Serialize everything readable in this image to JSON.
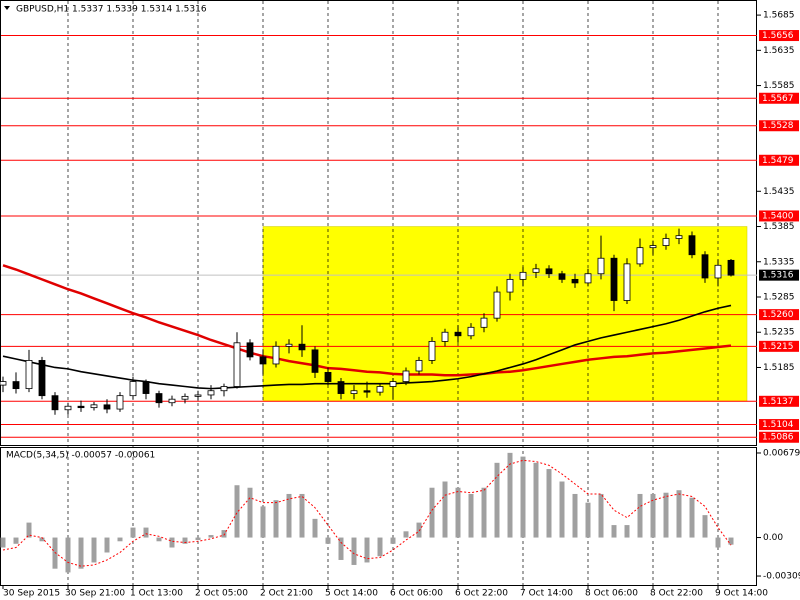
{
  "chart_data": [
    {
      "type": "candlestick",
      "title": "GBPUSD,H1  1.5337 1.5339 1.5314 1.5316",
      "categories": [
        "30 Sep 2015",
        null,
        null,
        null,
        null,
        "30 Sep 21:00",
        null,
        null,
        null,
        null,
        "1 Oct 13:00",
        null,
        null,
        null,
        null,
        "2 Oct 05:00",
        null,
        null,
        null,
        null,
        "2 Oct 21:00",
        null,
        null,
        null,
        null,
        "5 Oct 14:00",
        null,
        null,
        null,
        null,
        "6 Oct 06:00",
        null,
        null,
        null,
        null,
        "6 Oct 22:00",
        null,
        null,
        null,
        null,
        "7 Oct 14:00",
        null,
        null,
        null,
        null,
        "8 Oct 06:00",
        null,
        null,
        null,
        null,
        "8 Oct 22:00",
        null,
        null,
        null,
        null,
        "9 Oct 14:00",
        null
      ],
      "open": [
        1.516,
        1.5165,
        1.5155,
        1.5195,
        1.5145,
        1.5125,
        1.513,
        1.5128,
        1.5132,
        1.5126,
        1.5145,
        1.5165,
        1.5148,
        1.5135,
        1.514,
        1.5144,
        1.5146,
        1.5152,
        1.5158,
        1.522,
        1.52,
        1.519,
        1.5215,
        1.5218,
        1.521,
        1.5178,
        1.5165,
        1.5148,
        1.5152,
        1.515,
        1.5158,
        1.5165,
        1.518,
        1.5195,
        1.5222,
        1.5235,
        1.523,
        1.5242,
        1.5255,
        1.5292,
        1.531,
        1.532,
        1.5325,
        1.5318,
        1.531,
        1.5305,
        1.5318,
        1.534,
        1.528,
        1.5332,
        1.5355,
        1.5358,
        1.5368,
        1.5372,
        1.5345,
        1.5312,
        1.5337
      ],
      "high": [
        1.5172,
        1.5178,
        1.521,
        1.52,
        1.515,
        1.5135,
        1.5138,
        1.5136,
        1.514,
        1.515,
        1.5172,
        1.5168,
        1.5152,
        1.5145,
        1.5148,
        1.5152,
        1.516,
        1.5162,
        1.5235,
        1.5225,
        1.521,
        1.5222,
        1.5225,
        1.5245,
        1.5215,
        1.5185,
        1.517,
        1.516,
        1.5165,
        1.5162,
        1.517,
        1.5185,
        1.52,
        1.5228,
        1.524,
        1.5245,
        1.5248,
        1.5262,
        1.53,
        1.5318,
        1.5328,
        1.5332,
        1.533,
        1.5322,
        1.5318,
        1.5325,
        1.5372,
        1.5345,
        1.534,
        1.5368,
        1.5365,
        1.5375,
        1.5382,
        1.5378,
        1.535,
        1.5338,
        1.5339
      ],
      "low": [
        1.515,
        1.5148,
        1.515,
        1.514,
        1.5118,
        1.5118,
        1.5122,
        1.5124,
        1.512,
        1.5122,
        1.514,
        1.514,
        1.5128,
        1.513,
        1.5134,
        1.5138,
        1.514,
        1.5144,
        1.5155,
        1.5195,
        1.5175,
        1.5185,
        1.5205,
        1.52,
        1.517,
        1.516,
        1.514,
        1.514,
        1.5142,
        1.5145,
        1.514,
        1.516,
        1.5175,
        1.519,
        1.5215,
        1.522,
        1.5225,
        1.5235,
        1.525,
        1.528,
        1.53,
        1.5312,
        1.5312,
        1.5305,
        1.5298,
        1.53,
        1.531,
        1.5265,
        1.5275,
        1.5328,
        1.5345,
        1.5352,
        1.536,
        1.534,
        1.5305,
        1.53,
        1.5314
      ],
      "close": [
        1.5165,
        1.5155,
        1.5195,
        1.5145,
        1.5125,
        1.513,
        1.5128,
        1.5132,
        1.5126,
        1.5145,
        1.5165,
        1.5148,
        1.5135,
        1.514,
        1.5144,
        1.5146,
        1.5152,
        1.5158,
        1.522,
        1.52,
        1.519,
        1.5215,
        1.5218,
        1.521,
        1.5178,
        1.5165,
        1.5148,
        1.5152,
        1.515,
        1.5158,
        1.5165,
        1.518,
        1.5195,
        1.5222,
        1.5235,
        1.523,
        1.5242,
        1.5255,
        1.5292,
        1.531,
        1.532,
        1.5325,
        1.5318,
        1.531,
        1.5305,
        1.5318,
        1.534,
        1.528,
        1.5332,
        1.5355,
        1.5358,
        1.5368,
        1.5372,
        1.5345,
        1.5312,
        1.533,
        1.5316
      ],
      "up_color": "#ffffff",
      "down_color": "#000000",
      "overlays": [
        {
          "color": "#e00000",
          "values": [
            1.533,
            1.5324,
            1.5317,
            1.531,
            1.5303,
            1.5296,
            1.529,
            1.5283,
            1.5276,
            1.5269,
            1.5262,
            1.5256,
            1.5249,
            1.5243,
            1.5237,
            1.5231,
            1.5224,
            1.5218,
            1.5212,
            1.5206,
            1.5201,
            1.5198,
            1.5194,
            1.5191,
            1.5188,
            1.5184,
            1.5183,
            1.5181,
            1.5179,
            1.5178,
            1.5176,
            1.5175,
            1.5175,
            1.5175,
            1.5174,
            1.5174,
            1.5175,
            1.5176,
            1.5178,
            1.5179,
            1.5181,
            1.5184,
            1.5187,
            1.519,
            1.5193,
            1.5196,
            1.5198,
            1.52,
            1.5201,
            1.5203,
            1.5205,
            1.5206,
            1.5208,
            1.521,
            1.5212,
            1.5214,
            1.5216
          ]
        },
        {
          "color": "#000000",
          "values": [
            1.5201,
            1.5197,
            1.5193,
            1.5189,
            1.5185,
            1.5183,
            1.5179,
            1.5176,
            1.5173,
            1.517,
            1.5167,
            1.5165,
            1.5162,
            1.516,
            1.5158,
            1.5156,
            1.5155,
            1.5156,
            1.5157,
            1.5158,
            1.5159,
            1.516,
            1.5161,
            1.5161,
            1.5162,
            1.5162,
            1.5162,
            1.5162,
            1.5162,
            1.5162,
            1.5162,
            1.5163,
            1.5164,
            1.5165,
            1.5167,
            1.5169,
            1.5172,
            1.5176,
            1.518,
            1.5185,
            1.519,
            1.5196,
            1.5203,
            1.521,
            1.5217,
            1.5222,
            1.5227,
            1.5231,
            1.5235,
            1.5239,
            1.5243,
            1.5247,
            1.5252,
            1.5258,
            1.5264,
            1.5269,
            1.5273
          ]
        }
      ],
      "levels": [
        {
          "value": 1.5656,
          "label": "1.5656"
        },
        {
          "value": 1.5567,
          "label": "1.5567"
        },
        {
          "value": 1.5528,
          "label": "1.5528"
        },
        {
          "value": 1.5479,
          "label": "1.5479"
        },
        {
          "value": 1.54,
          "label": "1.5400"
        },
        {
          "value": 1.526,
          "label": "1.5260"
        },
        {
          "value": 1.5215,
          "label": "1.5215"
        },
        {
          "value": 1.5137,
          "label": "1.5137"
        },
        {
          "value": 1.5104,
          "label": "1.5104"
        },
        {
          "value": 1.5086,
          "label": "1.5086"
        }
      ],
      "level_color": "#ff0000",
      "current": {
        "value": 1.5316,
        "label": "1.5316"
      },
      "highlight_range": [
        1.5137,
        1.5385
      ],
      "highlight_color": "#ffff00",
      "ylim": [
        1.5075,
        1.5705
      ],
      "yticks": [
        1.5685,
        1.5635,
        1.5585,
        1.5435,
        1.5385,
        1.5335,
        1.5285,
        1.5235,
        1.5185
      ]
    },
    {
      "type": "macd",
      "title": "MACD(5,34,5) -0.00057 -0.00061",
      "color": "#a0a0a0",
      "signal_color": "#ff0000",
      "values": [
        -0.0008,
        -0.0005,
        0.0012,
        -0.0003,
        -0.0025,
        -0.0028,
        -0.0025,
        -0.002,
        -0.0012,
        -0.0003,
        0.0008,
        0.0008,
        -0.0003,
        -0.0008,
        -0.0005,
        -0.0002,
        0.0002,
        0.0006,
        0.0042,
        0.004,
        0.0025,
        0.003,
        0.0035,
        0.0035,
        0.0015,
        -0.0005,
        -0.0018,
        -0.0022,
        -0.002,
        -0.0015,
        -0.0005,
        0.0005,
        0.0012,
        0.004,
        0.0045,
        0.004,
        0.0035,
        0.004,
        0.006,
        0.0068,
        0.0065,
        0.006,
        0.0055,
        0.0045,
        0.0035,
        0.0028,
        0.0035,
        0.001,
        0.001,
        0.0035,
        0.0035,
        0.0036,
        0.0038,
        0.0032,
        0.0018,
        -0.0008,
        -0.00057
      ],
      "signal": [
        -0.001,
        -0.0008,
        0.0002,
        0.0,
        -0.0012,
        -0.002,
        -0.0023,
        -0.0022,
        -0.0018,
        -0.0012,
        -0.0003,
        0.0003,
        0.0001,
        -0.0003,
        -0.0004,
        -0.0003,
        -0.0001,
        0.0002,
        0.002,
        0.0032,
        0.0028,
        0.0028,
        0.0031,
        0.0033,
        0.0024,
        0.001,
        -0.0004,
        -0.0013,
        -0.0017,
        -0.0016,
        -0.001,
        -0.0002,
        0.0005,
        0.0022,
        0.0034,
        0.0037,
        0.0036,
        0.0038,
        0.0049,
        0.0059,
        0.0062,
        0.0061,
        0.0058,
        0.0051,
        0.0043,
        0.0035,
        0.0035,
        0.0022,
        0.0016,
        0.0025,
        0.003,
        0.0033,
        0.0035,
        0.0033,
        0.0025,
        0.0008,
        -0.00061
      ],
      "ylim": [
        -0.00381,
        0.00719
      ],
      "yticks": [
        0.00679,
        {
          "value": 0,
          "label": "0.00"
        },
        -0.00309
      ]
    }
  ]
}
